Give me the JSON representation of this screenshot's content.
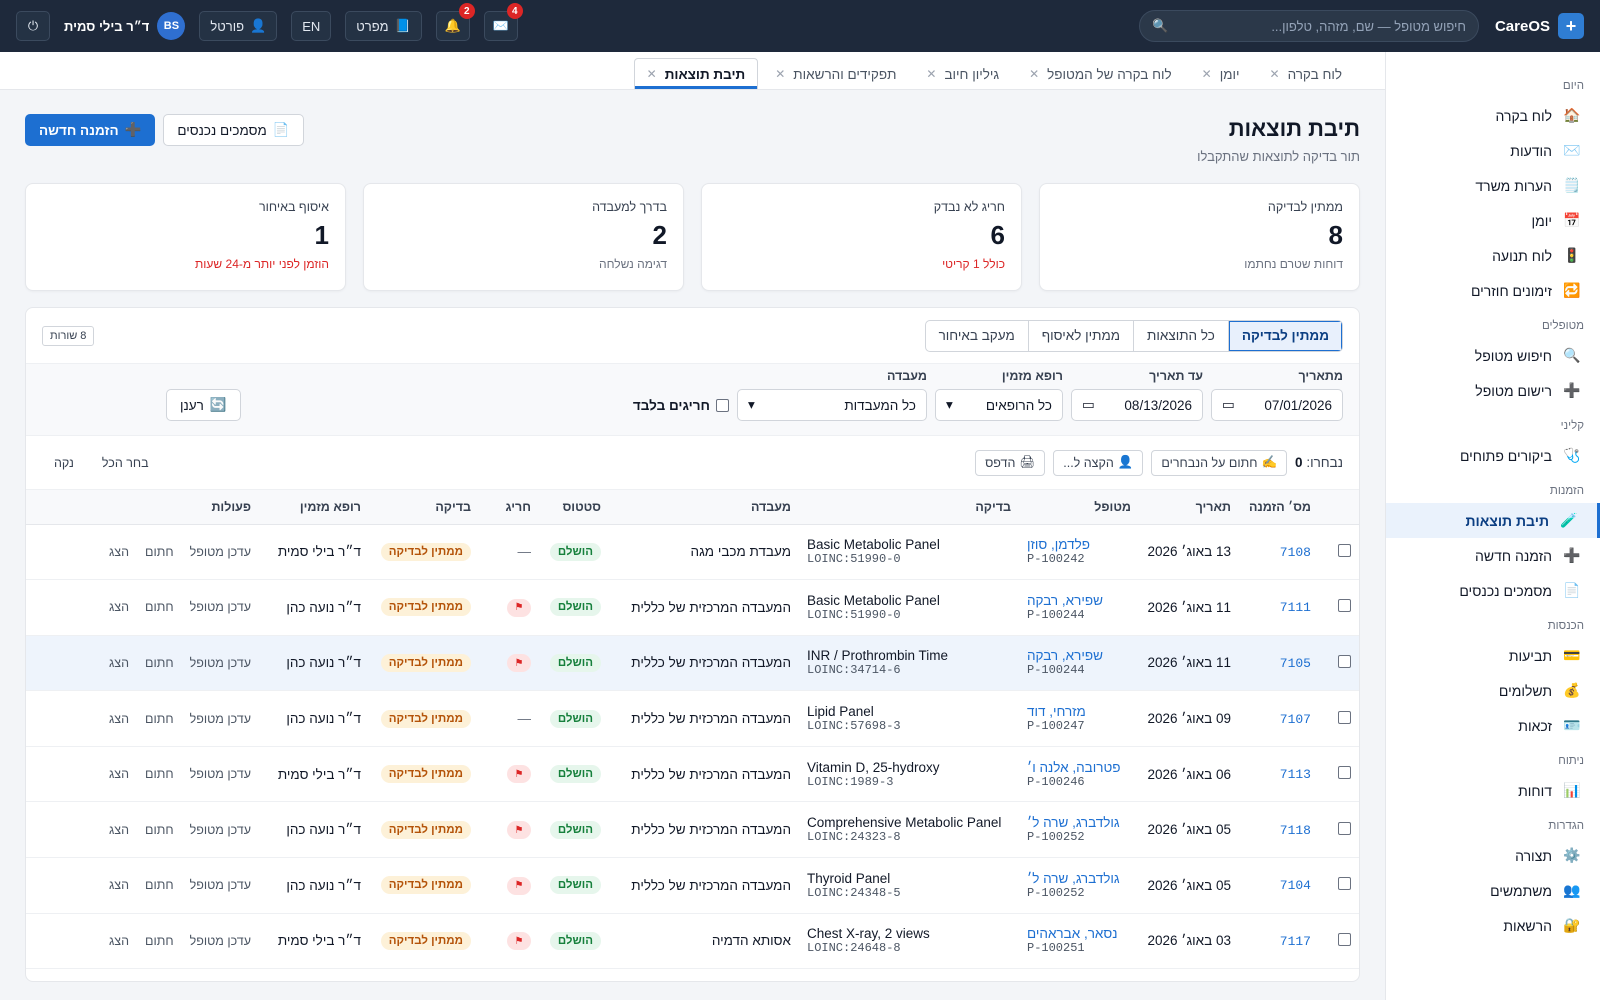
{
  "topbar": {
    "brand": "CareOS",
    "search_placeholder": "חיפוש מטופל — שם, מזהה, טלפון...",
    "user_name": "ד״ר בילי סמית",
    "user_initials": "BS",
    "portal": "פורטל",
    "lang": "EN",
    "handbook": "מפרט",
    "notif_count": "2",
    "mail_count": "4"
  },
  "sidebar": [
    {
      "section": "היום",
      "items": [
        {
          "icon": "🏠",
          "label": "לוח בקרה"
        },
        {
          "icon": "✉️",
          "label": "הודעות"
        },
        {
          "icon": "🗒️",
          "label": "הערות משרד"
        },
        {
          "icon": "📅",
          "label": "יומן"
        },
        {
          "icon": "🚦",
          "label": "לוח תנועה"
        },
        {
          "icon": "🔁",
          "label": "זימונים חוזרים"
        }
      ]
    },
    {
      "section": "מטופלים",
      "items": [
        {
          "icon": "🔍",
          "label": "חיפוש מטופל"
        },
        {
          "icon": "➕",
          "label": "רישום מטופל"
        }
      ]
    },
    {
      "section": "קליני",
      "items": [
        {
          "icon": "🩺",
          "label": "ביקורים פתוחים"
        }
      ]
    },
    {
      "section": "הזמנות",
      "items": [
        {
          "icon": "🧪",
          "label": "תיבת תוצאות",
          "active": true
        },
        {
          "icon": "➕",
          "label": "הזמנה חדשה"
        },
        {
          "icon": "📄",
          "label": "מסמכים נכנסים"
        }
      ]
    },
    {
      "section": "הכנסות",
      "items": [
        {
          "icon": "💳",
          "label": "תביעות"
        },
        {
          "icon": "💰",
          "label": "תשלומים"
        },
        {
          "icon": "🪪",
          "label": "זכאות"
        }
      ]
    },
    {
      "section": "ניתוח",
      "items": [
        {
          "icon": "📊",
          "label": "דוחות"
        }
      ]
    },
    {
      "section": "הגדרות",
      "items": [
        {
          "icon": "⚙️",
          "label": "תצורה"
        },
        {
          "icon": "👥",
          "label": "משתמשים"
        },
        {
          "icon": "🔐",
          "label": "הרשאות"
        }
      ]
    }
  ],
  "tabs": [
    {
      "label": "לוח בקרה"
    },
    {
      "label": "יומן"
    },
    {
      "label": "לוח בקרה של המטופל"
    },
    {
      "label": "גיליון חיוב"
    },
    {
      "label": "תפקידים והרשאות"
    },
    {
      "label": "תיבת תוצאות",
      "active": true
    }
  ],
  "header": {
    "title": "תיבת תוצאות",
    "subtitle": "תור בדיקה לתוצאות שהתקבלו",
    "btn_incoming": "מסמכים נכנסים",
    "btn_new": "הזמנה חדשה"
  },
  "cards": [
    {
      "label": "ממתין לבדיקה",
      "value": "8",
      "note": "דוחות שטרם נחתמו",
      "red": false
    },
    {
      "label": "חריג לא נבדק",
      "value": "6",
      "note": "כולל 1 קריטי",
      "red": true
    },
    {
      "label": "בדרך למעבדה",
      "value": "2",
      "note": "דגימה נשלחה",
      "red": false
    },
    {
      "label": "איסוף באיחור",
      "value": "1",
      "note": "הוזמן לפני יותר מ-24 שעות",
      "red": true
    }
  ],
  "segments": [
    {
      "label": "ממתין לבדיקה",
      "on": true
    },
    {
      "label": "כל התוצאות"
    },
    {
      "label": "ממתין לאיסוף"
    },
    {
      "label": "מעקב באיחור"
    }
  ],
  "row_count": "8 שורות",
  "filters": {
    "from_label": "מתאריך",
    "from_value": "07/01/2026",
    "to_label": "עד תאריך",
    "to_value": "08/13/2026",
    "doctor_label": "רופא מזמין",
    "doctor_value": "כל הרופאים",
    "lab_label": "מעבדה",
    "lab_value": "כל המעבדות",
    "critical_only": "חריגים בלבד",
    "refresh": "רענן"
  },
  "selection": {
    "label": "נבחרו:",
    "count": "0",
    "sign": "חתום על הנבחרים",
    "assign": "הקצה ל...",
    "print": "הדפס",
    "select_all": "בחר הכל",
    "clear": "נקה"
  },
  "columns": [
    "מס׳ הזמנה",
    "תאריך",
    "מטופל",
    "בדיקה",
    "מעבדה",
    "סטטוס",
    "חריג",
    "בדיקה",
    "רופא מזמין",
    "פעולות"
  ],
  "rows": [
    {
      "id": "7108",
      "date": "13 באוג׳ 2026",
      "patient": "פלדמן, סוזן",
      "pid": "P-100242",
      "test": "Basic Metabolic Panel",
      "loinc": "LOINC:51990-0",
      "lab": "מעבדת מכבי מגה",
      "status": "הושלם",
      "abnormal": false,
      "review": "ממתין לבדיקה",
      "doctor": "ד״ר בילי סמית"
    },
    {
      "id": "7111",
      "date": "11 באוג׳ 2026",
      "patient": "שפירא, רבקה",
      "pid": "P-100244",
      "test": "Basic Metabolic Panel",
      "loinc": "LOINC:51990-0",
      "lab": "המעבדה המרכזית של כללית",
      "status": "הושלם",
      "abnormal": true,
      "review": "ממתין לבדיקה",
      "doctor": "ד״ר נועה כהן"
    },
    {
      "id": "7105",
      "date": "11 באוג׳ 2026",
      "patient": "שפירא, רבקה",
      "pid": "P-100244",
      "test": "INR / Prothrombin Time",
      "loinc": "LOINC:34714-6",
      "lab": "המעבדה המרכזית של כללית",
      "status": "הושלם",
      "abnormal": true,
      "review": "ממתין לבדיקה",
      "doctor": "ד״ר נועה כהן",
      "hl": true
    },
    {
      "id": "7107",
      "date": "09 באוג׳ 2026",
      "patient": "מזרחי, דוד",
      "pid": "P-100247",
      "test": "Lipid Panel",
      "loinc": "LOINC:57698-3",
      "lab": "המעבדה המרכזית של כללית",
      "status": "הושלם",
      "abnormal": false,
      "review": "ממתין לבדיקה",
      "doctor": "ד״ר נועה כהן"
    },
    {
      "id": "7113",
      "date": "06 באוג׳ 2026",
      "patient": "פטרובה, אלנה ו׳",
      "pid": "P-100246",
      "test": "Vitamin D, 25-hydroxy",
      "loinc": "LOINC:1989-3",
      "lab": "המעבדה המרכזית של כללית",
      "status": "הושלם",
      "abnormal": true,
      "review": "ממתין לבדיקה",
      "doctor": "ד״ר בילי סמית"
    },
    {
      "id": "7118",
      "date": "05 באוג׳ 2026",
      "patient": "גולדברג, שרה ל׳",
      "pid": "P-100252",
      "test": "Comprehensive Metabolic Panel",
      "loinc": "LOINC:24323-8",
      "lab": "המעבדה המרכזית של כללית",
      "status": "הושלם",
      "abnormal": true,
      "review": "ממתין לבדיקה",
      "doctor": "ד״ר נועה כהן"
    },
    {
      "id": "7104",
      "date": "05 באוג׳ 2026",
      "patient": "גולדברג, שרה ל׳",
      "pid": "P-100252",
      "test": "Thyroid Panel",
      "loinc": "LOINC:24348-5",
      "lab": "המעבדה המרכזית של כללית",
      "status": "הושלם",
      "abnormal": true,
      "review": "ממתין לבדיקה",
      "doctor": "ד״ר נועה כהן"
    },
    {
      "id": "7117",
      "date": "03 באוג׳ 2026",
      "patient": "נסאר, אבראהים",
      "pid": "P-100251",
      "test": "Chest X-ray, 2 views",
      "loinc": "LOINC:24648-8",
      "lab": "אסותא הדמיה",
      "status": "הושלם",
      "abnormal": true,
      "review": "ממתין לבדיקה",
      "doctor": "ד״ר בילי סמית"
    }
  ],
  "row_actions": [
    "עדכן מטופל",
    "חתום",
    "הצג"
  ],
  "colors": {
    "accent": "#1d6fd1",
    "topbar": "#1e293b",
    "critical": "#dc2626"
  }
}
